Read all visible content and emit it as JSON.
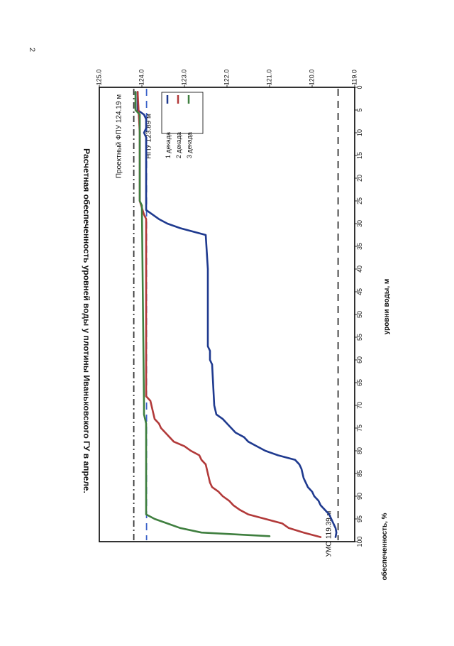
{
  "page_number": "2",
  "colors": {
    "decade1": "#1f3a8f",
    "decade2": "#b23a3a",
    "decade3": "#3f7f3f",
    "fpu_line": "#333333",
    "npu_line": "#3b62c9",
    "umo_line": "#333333"
  },
  "chart_data": {
    "type": "line",
    "title": "Расчетная обеспеченность уровней воды у плотины Иваньковского ГУ в апреле.",
    "xlabel": "обеспеченность, %",
    "ylabel": "уровни воды, м",
    "xlim": [
      0,
      100
    ],
    "ylim": [
      119.0,
      125.0
    ],
    "xticks": [
      0,
      5,
      10,
      15,
      20,
      25,
      30,
      35,
      40,
      45,
      50,
      55,
      60,
      65,
      70,
      75,
      80,
      85,
      90,
      95,
      100
    ],
    "yticks": [
      119.0,
      120.0,
      121.0,
      122.0,
      123.0,
      124.0,
      125.0
    ],
    "ytick_labels": [
      "119.0",
      "120.0",
      "121.0",
      "122.0",
      "123.0",
      "124.0",
      "125.0"
    ],
    "legend": [
      "1 декада",
      "2 декада",
      "3 декада"
    ],
    "legend_position": "top-right",
    "reference_lines": [
      {
        "name": "fpu",
        "label": "Проектный ФПУ 124.19 м",
        "y": 124.19,
        "style": "dash-dot"
      },
      {
        "name": "npu",
        "label": "НПУ 123.89 м",
        "y": 123.89,
        "style": "dashed"
      },
      {
        "name": "umo",
        "label": "УМО 119.39 м",
        "y": 119.39,
        "style": "dashed"
      }
    ],
    "series": [
      {
        "name": "1 декада",
        "points": [
          [
            1,
            124.1
          ],
          [
            5,
            124.1
          ],
          [
            6,
            123.95
          ],
          [
            7,
            123.9
          ],
          [
            9,
            123.9
          ],
          [
            10,
            123.95
          ],
          [
            11,
            123.9
          ],
          [
            27,
            123.9
          ],
          [
            28,
            123.75
          ],
          [
            29,
            123.6
          ],
          [
            30,
            123.4
          ],
          [
            31,
            123.1
          ],
          [
            32.5,
            122.5
          ],
          [
            40,
            122.45
          ],
          [
            57,
            122.45
          ],
          [
            58,
            122.4
          ],
          [
            60,
            122.4
          ],
          [
            61,
            122.35
          ],
          [
            70,
            122.3
          ],
          [
            72,
            122.25
          ],
          [
            73,
            122.1
          ],
          [
            74,
            122.0
          ],
          [
            75,
            121.9
          ],
          [
            76,
            121.8
          ],
          [
            77,
            121.6
          ],
          [
            78,
            121.5
          ],
          [
            79,
            121.3
          ],
          [
            80,
            121.1
          ],
          [
            81,
            120.8
          ],
          [
            82,
            120.4
          ],
          [
            83,
            120.3
          ],
          [
            84,
            120.25
          ],
          [
            86,
            120.2
          ],
          [
            88,
            120.1
          ],
          [
            89,
            120.0
          ],
          [
            90,
            119.95
          ],
          [
            91,
            119.85
          ],
          [
            92,
            119.8
          ],
          [
            93,
            119.7
          ],
          [
            94,
            119.6
          ],
          [
            95,
            119.55
          ],
          [
            96,
            119.5
          ],
          [
            97,
            119.45
          ],
          [
            98,
            119.43
          ],
          [
            99,
            119.45
          ]
        ]
      },
      {
        "name": "2 декада",
        "points": [
          [
            1,
            124.1
          ],
          [
            10,
            124.05
          ],
          [
            25,
            124.05
          ],
          [
            28,
            123.95
          ],
          [
            29,
            123.9
          ],
          [
            68,
            123.9
          ],
          [
            69,
            123.8
          ],
          [
            71,
            123.75
          ],
          [
            73,
            123.7
          ],
          [
            74,
            123.6
          ],
          [
            75,
            123.55
          ],
          [
            76,
            123.45
          ],
          [
            77,
            123.35
          ],
          [
            78,
            123.25
          ],
          [
            79,
            123.0
          ],
          [
            80,
            122.85
          ],
          [
            81,
            122.65
          ],
          [
            82,
            122.6
          ],
          [
            83,
            122.5
          ],
          [
            85,
            122.45
          ],
          [
            87,
            122.4
          ],
          [
            88,
            122.35
          ],
          [
            89,
            122.2
          ],
          [
            90,
            122.1
          ],
          [
            91,
            121.95
          ],
          [
            92,
            121.85
          ],
          [
            93,
            121.7
          ],
          [
            94,
            121.5
          ],
          [
            95,
            121.1
          ],
          [
            96,
            120.7
          ],
          [
            97,
            120.55
          ],
          [
            98,
            120.2
          ],
          [
            99,
            119.8
          ]
        ]
      },
      {
        "name": "3 декада",
        "points": [
          [
            1,
            124.15
          ],
          [
            5,
            124.15
          ],
          [
            6,
            124.05
          ],
          [
            25,
            124.05
          ],
          [
            26,
            124.0
          ],
          [
            70,
            123.95
          ],
          [
            72,
            123.95
          ],
          [
            74,
            123.9
          ],
          [
            76,
            123.9
          ],
          [
            78,
            123.9
          ],
          [
            90,
            123.9
          ],
          [
            94,
            123.9
          ],
          [
            95,
            123.7
          ],
          [
            96,
            123.4
          ],
          [
            97,
            123.1
          ],
          [
            98,
            122.6
          ],
          [
            98.8,
            121.0
          ]
        ]
      }
    ]
  }
}
